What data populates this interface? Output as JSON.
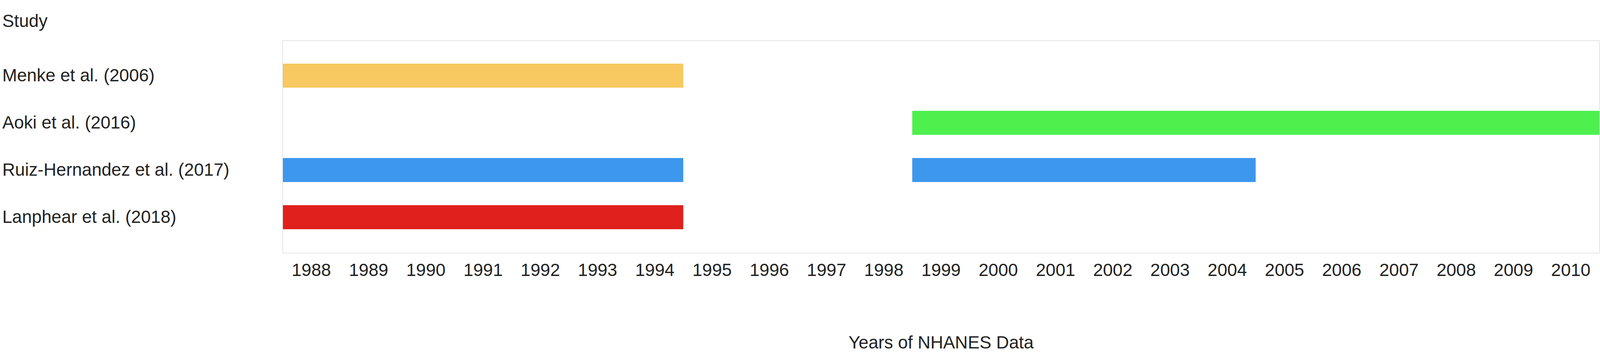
{
  "chart_data": {
    "type": "gantt",
    "orientation": "horizontal",
    "ylabel": "Study",
    "xlabel": "Years of NHANES Data",
    "categories": [
      "Menke et al. (2006)",
      "Aoki et al. (2016)",
      "Ruiz-Hernandez et al. (2017)",
      "Lanphear et al. (2018)"
    ],
    "colors": [
      "#f7c960",
      "#4df04d",
      "#3d97ec",
      "#e0201c"
    ],
    "values": [
      [
        [
          1987.5,
          1994.5
        ]
      ],
      [
        [
          1998.5,
          2010.5
        ]
      ],
      [
        [
          1987.5,
          1994.5
        ],
        [
          1998.5,
          2004.5
        ]
      ],
      [
        [
          1987.5,
          1994.5
        ]
      ]
    ],
    "xlim": [
      1987.5,
      2010.5
    ],
    "xticks": [
      1988,
      1989,
      1990,
      1991,
      1992,
      1993,
      1994,
      1995,
      1996,
      1997,
      1998,
      1999,
      2000,
      2001,
      2002,
      2003,
      2004,
      2005,
      2006,
      2007,
      2008,
      2009,
      2010
    ],
    "grid": false
  }
}
